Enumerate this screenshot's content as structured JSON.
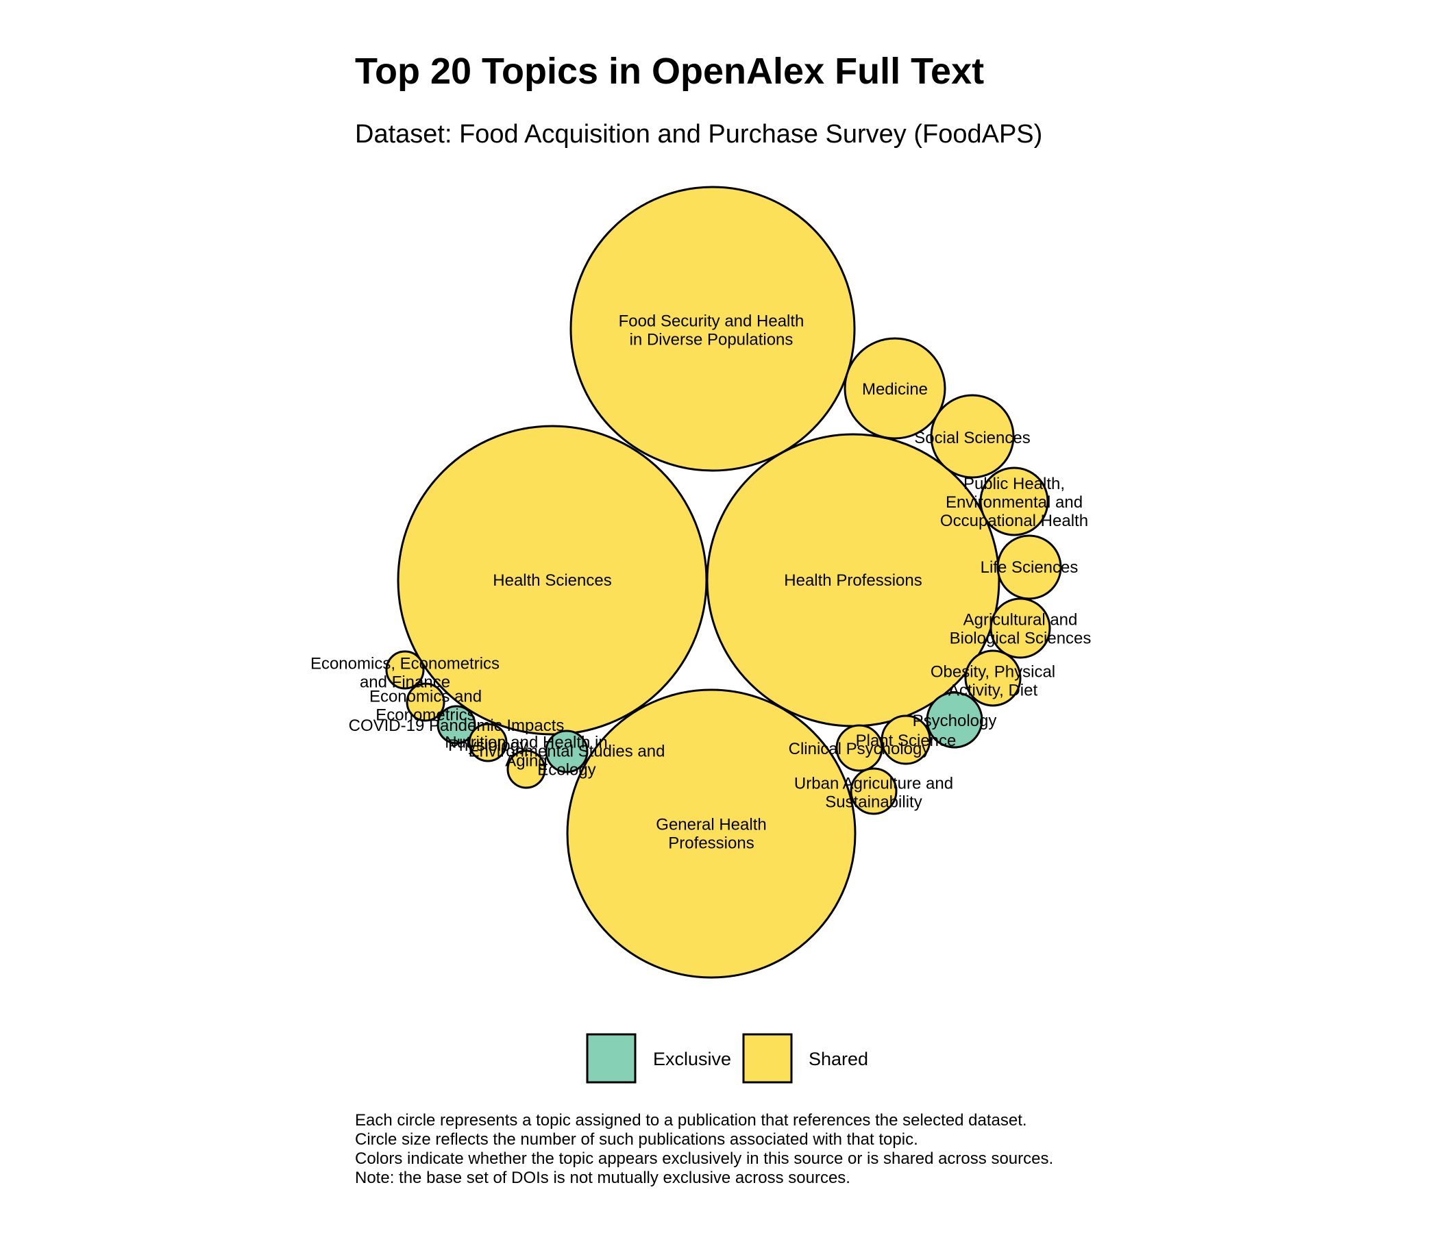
{
  "chart_data": {
    "type": "circle-packing",
    "title": "Top 20 Topics in OpenAlex Full Text",
    "subtitle": "Dataset: Food Acquisition and Purchase Survey (FoodAPS)",
    "legend": {
      "placement": "bottom",
      "items": [
        {
          "label": "Exclusive",
          "color": "#86D0B6"
        },
        {
          "label": "Shared",
          "color": "#FDE05A"
        }
      ]
    },
    "topics": [
      {
        "label": "Food Security and Health in Diverse Populations",
        "lines": [
          "Food Security and Health",
          "in Diverse Populations"
        ],
        "category": "Shared",
        "relative_size": 1.0
      },
      {
        "label": "Health Sciences",
        "lines": [
          "Health Sciences"
        ],
        "category": "Shared",
        "relative_size": 1.09
      },
      {
        "label": "Health Professions",
        "lines": [
          "Health Professions"
        ],
        "category": "Shared",
        "relative_size": 1.06
      },
      {
        "label": "General Health Professions",
        "lines": [
          "General Health",
          "Professions"
        ],
        "category": "Shared",
        "relative_size": 1.04
      },
      {
        "label": "Medicine",
        "lines": [
          "Medicine"
        ],
        "category": "Shared",
        "relative_size": 0.127
      },
      {
        "label": "Social Sciences",
        "lines": [
          "Social Sciences"
        ],
        "category": "Shared",
        "relative_size": 0.088
      },
      {
        "label": "Public Health, Environmental and Occupational Health",
        "lines": [
          "Public Health,",
          "Environmental and",
          "Occupational Health"
        ],
        "category": "Shared",
        "relative_size": 0.058
      },
      {
        "label": "Life Sciences",
        "lines": [
          "Life Sciences"
        ],
        "category": "Shared",
        "relative_size": 0.053
      },
      {
        "label": "Agricultural and Biological Sciences",
        "lines": [
          "Agricultural and",
          "Biological Sciences"
        ],
        "category": "Shared",
        "relative_size": 0.045
      },
      {
        "label": "Obesity, Physical Activity, Diet",
        "lines": [
          "Obesity, Physical",
          "Activity, Diet"
        ],
        "category": "Shared",
        "relative_size": 0.038
      },
      {
        "label": "Psychology",
        "lines": [
          "Psychology"
        ],
        "category": "Exclusive",
        "relative_size": 0.038
      },
      {
        "label": "Plant Science",
        "lines": [
          "Plant Science"
        ],
        "category": "Shared",
        "relative_size": 0.029
      },
      {
        "label": "Clinical Psychology",
        "lines": [
          "Clinical Psychology"
        ],
        "category": "Shared",
        "relative_size": 0.025
      },
      {
        "label": "Urban Agriculture and Sustainability",
        "lines": [
          "Urban Agriculture and",
          "Sustainability"
        ],
        "category": "Shared",
        "relative_size": 0.025
      },
      {
        "label": "Economics, Econometrics and Finance",
        "lines": [
          "Economics, Econometrics",
          "and Finance"
        ],
        "category": "Shared",
        "relative_size": 0.017
      },
      {
        "label": "Economics and Econometrics",
        "lines": [
          "Economics and",
          "Econometrics"
        ],
        "category": "Shared",
        "relative_size": 0.017
      },
      {
        "label": "COVID-19 Pandemic Impacts",
        "lines": [
          "COVID-19 Pandemic Impacts"
        ],
        "category": "Exclusive",
        "relative_size": 0.017
      },
      {
        "label": "Nutrition and Health in Aging",
        "lines": [
          "Nutrition and Health in",
          "Aging"
        ],
        "category": "Shared",
        "relative_size": 0.017
      },
      {
        "label": "Physiology",
        "lines": [
          "Physiology"
        ],
        "category": "Shared",
        "relative_size": 0.017
      },
      {
        "label": "Environmental Studies and Ecology",
        "lines": [
          "Environmental Studies and",
          "Ecology"
        ],
        "category": "Exclusive",
        "relative_size": 0.021
      }
    ]
  },
  "caption": [
    "Each circle represents a topic assigned to a publication that references the selected dataset.",
    "Circle size reflects the number of such publications associated with that topic.",
    "Colors indicate whether the topic appears exclusively in this source or is shared across sources.",
    "Note: the base set of DOIs is not mutually exclusive across sources."
  ]
}
